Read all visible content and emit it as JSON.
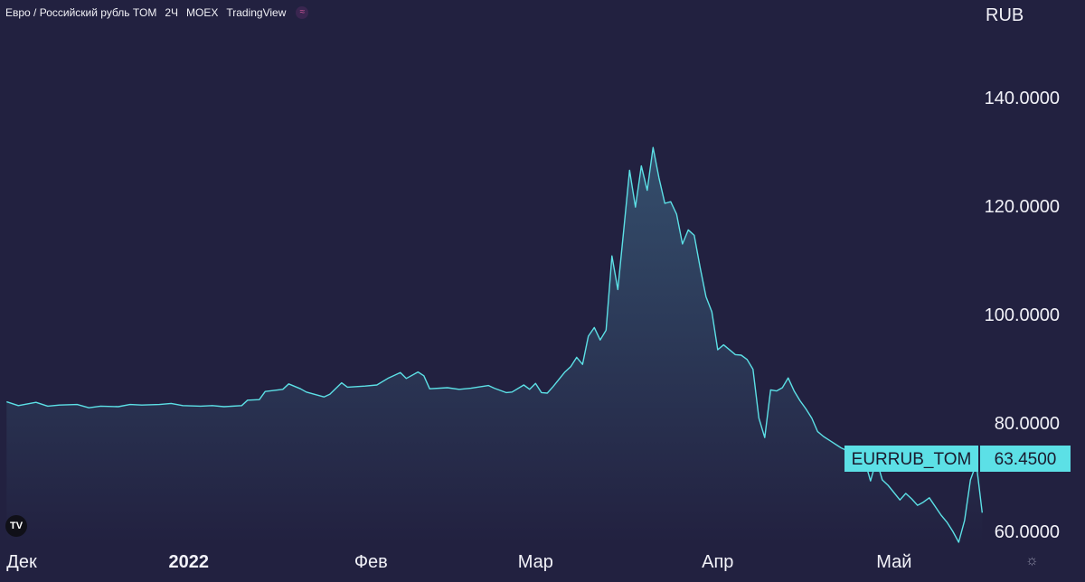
{
  "header": {
    "symbol_name": "Евро / Российский рубль TOM",
    "interval": "2Ч",
    "exchange": "MOEX",
    "provider": "TradingView",
    "status_icon": "market-status-icon"
  },
  "currency_label": "RUB",
  "colors": {
    "background": "#222140",
    "line": "#5ce0e6",
    "label_bg": "#5ce0e6",
    "label_text": "#1a1a2e"
  },
  "chart_data": {
    "type": "area",
    "xlabel": "",
    "ylabel": "",
    "ylim": [
      43,
      152
    ],
    "xlim": [
      "2021-12-01",
      "2022-05-30"
    ],
    "y_ticks": [
      {
        "value": 140,
        "label": "140.0000"
      },
      {
        "value": 120,
        "label": "120.0000"
      },
      {
        "value": 100,
        "label": "100.0000"
      },
      {
        "value": 80,
        "label": "80.0000"
      },
      {
        "value": 60,
        "label": "60.0000"
      }
    ],
    "x_ticks": [
      {
        "date": "2021-12-01",
        "label": "Дек",
        "bold": false
      },
      {
        "date": "2022-01-01",
        "label": "2022",
        "bold": true
      },
      {
        "date": "2022-02-01",
        "label": "Фев",
        "bold": false
      },
      {
        "date": "2022-03-01",
        "label": "Мар",
        "bold": false
      },
      {
        "date": "2022-04-01",
        "label": "Апр",
        "bold": false
      },
      {
        "date": "2022-05-01",
        "label": "Май",
        "bold": false
      }
    ],
    "last_value_label": {
      "name": "EURRUB_TOM",
      "value": "63.4500"
    },
    "series": [
      {
        "name": "EURRUB_TOM",
        "points": [
          [
            "2021-12-01",
            83.9
          ],
          [
            "2021-12-03",
            83.2
          ],
          [
            "2021-12-06",
            83.8
          ],
          [
            "2021-12-08",
            83.1
          ],
          [
            "2021-12-10",
            83.3
          ],
          [
            "2021-12-13",
            83.4
          ],
          [
            "2021-12-15",
            82.8
          ],
          [
            "2021-12-17",
            83.1
          ],
          [
            "2021-12-20",
            83.0
          ],
          [
            "2021-12-22",
            83.4
          ],
          [
            "2021-12-24",
            83.3
          ],
          [
            "2021-12-27",
            83.4
          ],
          [
            "2021-12-29",
            83.6
          ],
          [
            "2021-12-31",
            83.2
          ],
          [
            "2022-01-03",
            83.1
          ],
          [
            "2022-01-05",
            83.2
          ],
          [
            "2022-01-07",
            83.0
          ],
          [
            "2022-01-10",
            83.2
          ],
          [
            "2022-01-11",
            84.2
          ],
          [
            "2022-01-13",
            84.3
          ],
          [
            "2022-01-14",
            85.8
          ],
          [
            "2022-01-17",
            86.2
          ],
          [
            "2022-01-18",
            87.2
          ],
          [
            "2022-01-20",
            86.3
          ],
          [
            "2022-01-21",
            85.7
          ],
          [
            "2022-01-24",
            84.8
          ],
          [
            "2022-01-25",
            85.3
          ],
          [
            "2022-01-27",
            87.4
          ],
          [
            "2022-01-28",
            86.6
          ],
          [
            "2022-01-31",
            86.8
          ],
          [
            "2022-02-02",
            87.0
          ],
          [
            "2022-02-04",
            88.3
          ],
          [
            "2022-02-06",
            89.3
          ],
          [
            "2022-02-07",
            88.2
          ],
          [
            "2022-02-09",
            89.4
          ],
          [
            "2022-02-10",
            88.7
          ],
          [
            "2022-02-11",
            86.3
          ],
          [
            "2022-02-14",
            86.5
          ],
          [
            "2022-02-16",
            86.2
          ],
          [
            "2022-02-18",
            86.4
          ],
          [
            "2022-02-21",
            86.9
          ],
          [
            "2022-02-22",
            86.4
          ],
          [
            "2022-02-24",
            85.6
          ],
          [
            "2022-02-25",
            85.7
          ],
          [
            "2022-02-27",
            87.0
          ],
          [
            "2022-02-28",
            86.2
          ],
          [
            "2022-03-01",
            87.3
          ],
          [
            "2022-03-02",
            85.6
          ],
          [
            "2022-03-03",
            85.5
          ],
          [
            "2022-03-04",
            86.7
          ],
          [
            "2022-03-06",
            89.4
          ],
          [
            "2022-03-07",
            90.4
          ],
          [
            "2022-03-08",
            92.1
          ],
          [
            "2022-03-09",
            90.8
          ],
          [
            "2022-03-10",
            96.0
          ],
          [
            "2022-03-11",
            97.6
          ],
          [
            "2022-03-12",
            95.3
          ],
          [
            "2022-03-13",
            97.1
          ],
          [
            "2022-03-14",
            110.8
          ],
          [
            "2022-03-15",
            104.6
          ],
          [
            "2022-03-16",
            115.5
          ],
          [
            "2022-03-17",
            126.6
          ],
          [
            "2022-03-18",
            119.8
          ],
          [
            "2022-03-19",
            127.4
          ],
          [
            "2022-03-20",
            122.9
          ],
          [
            "2022-03-21",
            130.8
          ],
          [
            "2022-03-22",
            125.2
          ],
          [
            "2022-03-23",
            120.5
          ],
          [
            "2022-03-24",
            120.8
          ],
          [
            "2022-03-25",
            118.5
          ],
          [
            "2022-03-26",
            113.0
          ],
          [
            "2022-03-27",
            115.6
          ],
          [
            "2022-03-28",
            114.6
          ],
          [
            "2022-03-29",
            108.7
          ],
          [
            "2022-03-30",
            103.3
          ],
          [
            "2022-03-31",
            100.5
          ],
          [
            "2022-04-01",
            93.5
          ],
          [
            "2022-04-02",
            94.4
          ],
          [
            "2022-04-04",
            92.6
          ],
          [
            "2022-04-05",
            92.5
          ],
          [
            "2022-04-06",
            91.7
          ],
          [
            "2022-04-07",
            89.9
          ],
          [
            "2022-04-08",
            80.9
          ],
          [
            "2022-04-09",
            77.3
          ],
          [
            "2022-04-10",
            86.1
          ],
          [
            "2022-04-11",
            85.9
          ],
          [
            "2022-04-12",
            86.5
          ],
          [
            "2022-04-13",
            88.3
          ],
          [
            "2022-04-14",
            85.9
          ],
          [
            "2022-04-15",
            84.1
          ],
          [
            "2022-04-16",
            82.6
          ],
          [
            "2022-04-17",
            80.9
          ],
          [
            "2022-04-18",
            78.4
          ],
          [
            "2022-04-19",
            77.5
          ],
          [
            "2022-04-20",
            76.8
          ],
          [
            "2022-04-22",
            75.4
          ],
          [
            "2022-04-24",
            74.4
          ],
          [
            "2022-04-26",
            73.1
          ],
          [
            "2022-04-27",
            69.3
          ],
          [
            "2022-04-28",
            73.2
          ],
          [
            "2022-04-29",
            69.5
          ],
          [
            "2022-04-30",
            68.5
          ],
          [
            "2022-05-02",
            65.8
          ],
          [
            "2022-05-03",
            67.0
          ],
          [
            "2022-05-04",
            66.0
          ],
          [
            "2022-05-05",
            64.8
          ],
          [
            "2022-05-06",
            65.4
          ],
          [
            "2022-05-07",
            66.2
          ],
          [
            "2022-05-09",
            63.0
          ],
          [
            "2022-05-10",
            61.7
          ],
          [
            "2022-05-11",
            60.0
          ],
          [
            "2022-05-12",
            58.0
          ],
          [
            "2022-05-13",
            62.0
          ],
          [
            "2022-05-14",
            69.5
          ],
          [
            "2022-05-15",
            72.5
          ],
          [
            "2022-05-16",
            63.45
          ]
        ]
      }
    ]
  }
}
